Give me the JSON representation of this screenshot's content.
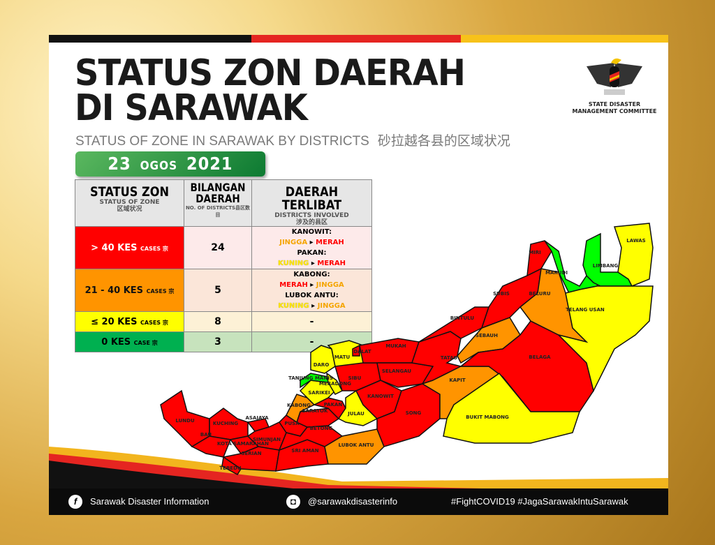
{
  "header": {
    "title_line1": "STATUS ZON DAERAH",
    "title_line2": "DI SARAWAK",
    "subtitle_en": "STATUS OF ZONE IN SARAWAK BY DISTRICTS",
    "subtitle_zh": "砂拉越各县的区域状况",
    "date_day": "23",
    "date_month": "OGOS",
    "date_year": "2021"
  },
  "logo": {
    "caption_line1": "STATE DISASTER",
    "caption_line2": "MANAGEMENT COMMITTEE"
  },
  "colors": {
    "red": "#ff0000",
    "orange": "#ff9400",
    "yellow": "#ffff00",
    "green_table": "#00b050",
    "green_map": "#00ff00"
  },
  "table": {
    "headers": [
      {
        "title": "STATUS ZON",
        "sub": "STATUS OF ZONE",
        "zh": "区域状况"
      },
      {
        "title": "BILANGAN DAERAH",
        "sub": "NO. OF DISTRICTS县区数目"
      },
      {
        "title": "DAERAH TERLIBAT",
        "sub": "DISTRICTS INVOLVED",
        "zh": "涉及的县区"
      }
    ],
    "rows": [
      {
        "status": "> 40 KES",
        "unit": "CASES 宗",
        "count": "24",
        "changes": [
          {
            "district": "KANOWIT:",
            "from": "JINGGA",
            "to": "MERAH"
          },
          {
            "district": "PAKAN:",
            "from": "KUNING",
            "to": "MERAH"
          }
        ]
      },
      {
        "status": "21 - 40 KES",
        "unit": "CASES 宗",
        "count": "5",
        "changes": [
          {
            "district": "KABONG:",
            "from": "MERAH",
            "to": "JINGGA"
          },
          {
            "district": "LUBOK ANTU:",
            "from": "KUNING",
            "to": "JINGGA"
          }
        ]
      },
      {
        "status": "≤ 20 KES",
        "unit": "CASES 宗",
        "count": "8",
        "involved": "-"
      },
      {
        "status": "0 KES",
        "unit": "CASE 宗",
        "count": "3",
        "involved": "-"
      }
    ]
  },
  "districts": [
    {
      "name": "LUNDU",
      "status": "red"
    },
    {
      "name": "KUCHING",
      "status": "red"
    },
    {
      "name": "BAU",
      "status": "red"
    },
    {
      "name": "KOTA SAMARAHAN",
      "status": "red"
    },
    {
      "name": "ASAJAYA",
      "status": "red"
    },
    {
      "name": "SIMUNJAN",
      "status": "red"
    },
    {
      "name": "SERIAN",
      "status": "red"
    },
    {
      "name": "TEBEDU",
      "status": "red"
    },
    {
      "name": "SRI AMAN",
      "status": "red"
    },
    {
      "name": "PUSA",
      "status": "red"
    },
    {
      "name": "BETONG",
      "status": "red"
    },
    {
      "name": "SARATOK",
      "status": "red"
    },
    {
      "name": "KABONG",
      "status": "orange"
    },
    {
      "name": "LUBOK ANTU",
      "status": "orange"
    },
    {
      "name": "PAKAN",
      "status": "red"
    },
    {
      "name": "JULAU",
      "status": "yellow"
    },
    {
      "name": "SARIKEI",
      "status": "yellow"
    },
    {
      "name": "TANJUNG MANIS",
      "status": "green"
    },
    {
      "name": "MERADONG",
      "status": "yellow"
    },
    {
      "name": "DARO",
      "status": "yellow"
    },
    {
      "name": "MATU",
      "status": "yellow"
    },
    {
      "name": "DALAT",
      "status": "red"
    },
    {
      "name": "SIBU",
      "status": "red"
    },
    {
      "name": "MUKAH",
      "status": "red"
    },
    {
      "name": "SELANGAU",
      "status": "red"
    },
    {
      "name": "KANOWIT",
      "status": "red"
    },
    {
      "name": "SONG",
      "status": "red"
    },
    {
      "name": "TATAU",
      "status": "red"
    },
    {
      "name": "BINTULU",
      "status": "red"
    },
    {
      "name": "KAPIT",
      "status": "orange"
    },
    {
      "name": "SEBAUH",
      "status": "orange"
    },
    {
      "name": "BELAGA",
      "status": "red"
    },
    {
      "name": "BUKIT MABONG",
      "status": "yellow"
    },
    {
      "name": "SUBIS",
      "status": "red"
    },
    {
      "name": "MIRI",
      "status": "red"
    },
    {
      "name": "BELURU",
      "status": "orange"
    },
    {
      "name": "MARUDI",
      "status": "green"
    },
    {
      "name": "LIMBANG",
      "status": "green"
    },
    {
      "name": "LAWAS",
      "status": "yellow"
    },
    {
      "name": "TELANG USAN",
      "status": "yellow"
    }
  ],
  "footer": {
    "facebook": "Sarawak Disaster Information",
    "instagram": "@sarawakdisasterinfo",
    "hashtags": "#FightCOVID19  #JagaSarawakIntuSarawak"
  }
}
